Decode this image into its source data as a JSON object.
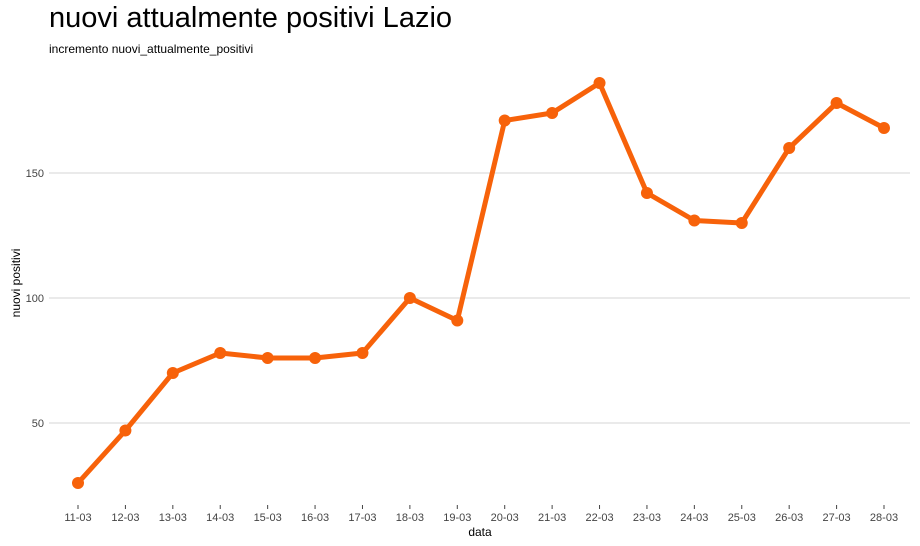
{
  "chart_data": {
    "type": "line",
    "title": "nuovi attualmente positivi Lazio",
    "subtitle": "incremento nuovi_attualmente_positivi",
    "xlabel": "data",
    "ylabel": "nuovi positivi",
    "categories": [
      "11-03",
      "12-03",
      "13-03",
      "14-03",
      "15-03",
      "16-03",
      "17-03",
      "18-03",
      "19-03",
      "20-03",
      "21-03",
      "22-03",
      "23-03",
      "24-03",
      "25-03",
      "26-03",
      "27-03",
      "28-03"
    ],
    "values": [
      26,
      47,
      70,
      78,
      76,
      76,
      78,
      100,
      91,
      171,
      174,
      186,
      142,
      131,
      130,
      160,
      178,
      168
    ],
    "yticks": [
      50,
      100,
      150
    ],
    "ylim": [
      20,
      192
    ],
    "grid": true,
    "color": "#f7620a"
  }
}
